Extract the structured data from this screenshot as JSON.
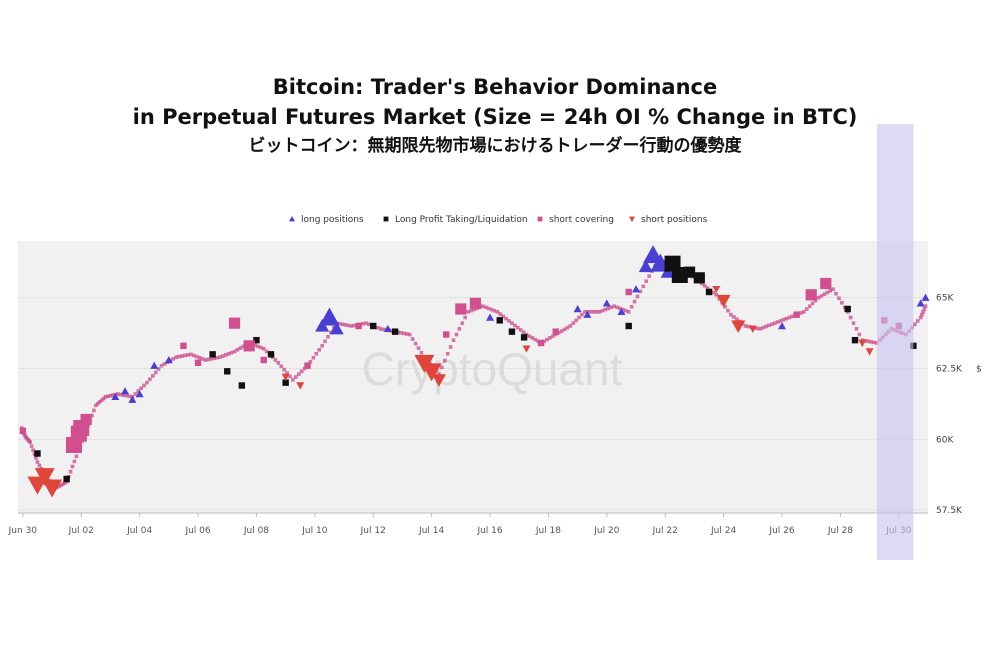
{
  "title": {
    "line1": "Bitcoin: Trader's Behavior Dominance",
    "line2": "in Perpetual Futures Market (Size = 24h OI % Change in BTC)",
    "line3": "ビットコイン：無期限先物市場におけるトレーダー行動の優勢度"
  },
  "watermark": "CryptoQuant",
  "colors": {
    "long": "#4a3fd4",
    "profit_taking": "#111111",
    "short_covering": "#d24f8f",
    "short": "#e0453a",
    "plot_bg": "#f1f1f1",
    "highlight": "#c7c3ee"
  },
  "chart_data": {
    "type": "scatter",
    "title": "Bitcoin: Trader's Behavior Dominance in Perpetual Futures Market (Size = 24h OI % Change in BTC)",
    "x_ticks": [
      "Jun 30",
      "Jul 02",
      "Jul 04",
      "Jul 06",
      "Jul 08",
      "Jul 10",
      "Jul 12",
      "Jul 14",
      "Jul 16",
      "Jul 18",
      "Jul 20",
      "Jul 22",
      "Jul 24",
      "Jul 26",
      "Jul 28",
      "Jul 30"
    ],
    "y_ticks": [
      "57.5K",
      "60K",
      "62.5K",
      "65K"
    ],
    "y_axis_unit": "$",
    "ylim": [
      57400,
      67000
    ],
    "xlim": [
      "2024-06-29T20:00",
      "2024-07-31T00:00"
    ],
    "highlight_range": [
      "2024-07-29T06:00",
      "2024-07-30T12:00"
    ],
    "legend_position": "top",
    "legend": [
      {
        "key": "long",
        "label": "long positions"
      },
      {
        "key": "profit_taking",
        "label": "Long Profit Taking/Liquidation"
      },
      {
        "key": "short_covering",
        "label": "short covering"
      },
      {
        "key": "short",
        "label": "short positions"
      }
    ],
    "series": [
      {
        "key": "long",
        "name": "long positions",
        "marker": "triangle-up",
        "points": [
          [
            "2024-07-03T04:00",
            61500,
            1
          ],
          [
            "2024-07-03T12:00",
            61700,
            1
          ],
          [
            "2024-07-03T18:00",
            61400,
            1
          ],
          [
            "2024-07-04T00:00",
            61600,
            1
          ],
          [
            "2024-07-04T12:00",
            62600,
            1
          ],
          [
            "2024-07-05T00:00",
            62800,
            1
          ],
          [
            "2024-07-10T06:00",
            64000,
            2
          ],
          [
            "2024-07-10T12:00",
            64300,
            3
          ],
          [
            "2024-07-10T18:00",
            63900,
            2
          ],
          [
            "2024-07-12T12:00",
            63900,
            1
          ],
          [
            "2024-07-16T00:00",
            64300,
            1
          ],
          [
            "2024-07-19T00:00",
            64600,
            1
          ],
          [
            "2024-07-19T08:00",
            64400,
            1
          ],
          [
            "2024-07-20T00:00",
            64800,
            1
          ],
          [
            "2024-07-20T12:00",
            64500,
            1
          ],
          [
            "2024-07-21T00:00",
            65300,
            1
          ],
          [
            "2024-07-21T08:00",
            66100,
            2
          ],
          [
            "2024-07-21T14:00",
            66500,
            3
          ],
          [
            "2024-07-21T20:00",
            66200,
            3
          ],
          [
            "2024-07-22T02:00",
            65900,
            2
          ],
          [
            "2024-07-26T00:00",
            64000,
            1
          ],
          [
            "2024-07-30T18:00",
            64800,
            1
          ],
          [
            "2024-07-30T22:00",
            65000,
            1
          ]
        ]
      },
      {
        "key": "profit_taking",
        "name": "Long Profit Taking/Liquidation",
        "marker": "square",
        "points": [
          [
            "2024-06-30T12:00",
            59500,
            1
          ],
          [
            "2024-07-01T12:00",
            58600,
            1
          ],
          [
            "2024-07-06T12:00",
            63000,
            1
          ],
          [
            "2024-07-07T00:00",
            62400,
            1
          ],
          [
            "2024-07-07T12:00",
            61900,
            1
          ],
          [
            "2024-07-08T00:00",
            63500,
            1
          ],
          [
            "2024-07-08T12:00",
            63000,
            1
          ],
          [
            "2024-07-09T00:00",
            62000,
            1
          ],
          [
            "2024-07-12T00:00",
            64000,
            1
          ],
          [
            "2024-07-12T18:00",
            63800,
            1
          ],
          [
            "2024-07-16T08:00",
            64200,
            1
          ],
          [
            "2024-07-16T18:00",
            63800,
            1
          ],
          [
            "2024-07-17T04:00",
            63600,
            1
          ],
          [
            "2024-07-20T18:00",
            64000,
            1
          ],
          [
            "2024-07-22T06:00",
            66200,
            3
          ],
          [
            "2024-07-22T12:00",
            65800,
            3
          ],
          [
            "2024-07-22T20:00",
            65900,
            2
          ],
          [
            "2024-07-23T04:00",
            65700,
            2
          ],
          [
            "2024-07-23T12:00",
            65200,
            1
          ],
          [
            "2024-07-28T06:00",
            64600,
            1
          ],
          [
            "2024-07-28T12:00",
            63500,
            1
          ],
          [
            "2024-07-30T12:00",
            63300,
            1
          ]
        ]
      },
      {
        "key": "short_covering",
        "name": "short covering",
        "marker": "square",
        "points": [
          [
            "2024-06-30T00:00",
            60300,
            1
          ],
          [
            "2024-07-01T18:00",
            59800,
            3
          ],
          [
            "2024-07-01T22:00",
            60200,
            3
          ],
          [
            "2024-07-02T00:00",
            60400,
            3
          ],
          [
            "2024-07-02T04:00",
            60700,
            2
          ],
          [
            "2024-07-05T12:00",
            63300,
            1
          ],
          [
            "2024-07-06T00:00",
            62700,
            1
          ],
          [
            "2024-07-07T06:00",
            64100,
            2
          ],
          [
            "2024-07-07T18:00",
            63300,
            2
          ],
          [
            "2024-07-08T06:00",
            62800,
            1
          ],
          [
            "2024-07-09T18:00",
            62600,
            1
          ],
          [
            "2024-07-11T12:00",
            64000,
            1
          ],
          [
            "2024-07-14T12:00",
            63700,
            1
          ],
          [
            "2024-07-15T00:00",
            64600,
            2
          ],
          [
            "2024-07-15T12:00",
            64800,
            2
          ],
          [
            "2024-07-17T18:00",
            63400,
            1
          ],
          [
            "2024-07-18T06:00",
            63800,
            1
          ],
          [
            "2024-07-20T18:00",
            65200,
            1
          ],
          [
            "2024-07-26T12:00",
            64400,
            1
          ],
          [
            "2024-07-27T00:00",
            65100,
            2
          ],
          [
            "2024-07-27T12:00",
            65500,
            2
          ],
          [
            "2024-07-29T12:00",
            64200,
            1
          ],
          [
            "2024-07-30T00:00",
            64000,
            1
          ]
        ]
      },
      {
        "key": "short",
        "name": "short positions",
        "marker": "triangle-down",
        "points": [
          [
            "2024-06-30T12:00",
            58400,
            3
          ],
          [
            "2024-06-30T18:00",
            58700,
            3
          ],
          [
            "2024-07-01T00:00",
            58300,
            3
          ],
          [
            "2024-07-09T00:00",
            62200,
            1
          ],
          [
            "2024-07-09T12:00",
            61900,
            1
          ],
          [
            "2024-07-13T18:00",
            62700,
            3
          ],
          [
            "2024-07-14T00:00",
            62400,
            3
          ],
          [
            "2024-07-14T06:00",
            62100,
            2
          ],
          [
            "2024-07-17T06:00",
            63200,
            1
          ],
          [
            "2024-07-23T18:00",
            65300,
            1
          ],
          [
            "2024-07-24T00:00",
            64900,
            2
          ],
          [
            "2024-07-24T12:00",
            64000,
            2
          ],
          [
            "2024-07-25T00:00",
            63900,
            1
          ],
          [
            "2024-07-28T18:00",
            63400,
            1
          ],
          [
            "2024-07-29T00:00",
            63100,
            1
          ]
        ]
      }
    ],
    "price_path": [
      [
        "2024-06-29T23:00",
        60400
      ],
      [
        "2024-06-30T02:00",
        60100
      ],
      [
        "2024-06-30T06:00",
        59900
      ],
      [
        "2024-06-30T12:00",
        59200
      ],
      [
        "2024-06-30T20:00",
        58600
      ],
      [
        "2024-07-01T04:00",
        58300
      ],
      [
        "2024-07-01T12:00",
        58500
      ],
      [
        "2024-07-01T20:00",
        59400
      ],
      [
        "2024-07-02T04:00",
        60300
      ],
      [
        "2024-07-02T12:00",
        61200
      ],
      [
        "2024-07-02T20:00",
        61500
      ],
      [
        "2024-07-03T06:00",
        61600
      ],
      [
        "2024-07-03T18:00",
        61500
      ],
      [
        "2024-07-04T06:00",
        62000
      ],
      [
        "2024-07-04T18:00",
        62600
      ],
      [
        "2024-07-05T06:00",
        62900
      ],
      [
        "2024-07-05T18:00",
        63000
      ],
      [
        "2024-07-06T06:00",
        62800
      ],
      [
        "2024-07-06T18:00",
        62900
      ],
      [
        "2024-07-07T06:00",
        63100
      ],
      [
        "2024-07-07T18:00",
        63400
      ],
      [
        "2024-07-08T06:00",
        63200
      ],
      [
        "2024-07-08T18:00",
        62700
      ],
      [
        "2024-07-09T06:00",
        62100
      ],
      [
        "2024-07-09T18:00",
        62600
      ],
      [
        "2024-07-10T06:00",
        63300
      ],
      [
        "2024-07-10T18:00",
        64100
      ],
      [
        "2024-07-11T06:00",
        64000
      ],
      [
        "2024-07-11T18:00",
        64100
      ],
      [
        "2024-07-12T06:00",
        63900
      ],
      [
        "2024-07-12T18:00",
        63800
      ],
      [
        "2024-07-13T06:00",
        63700
      ],
      [
        "2024-07-13T18:00",
        62900
      ],
      [
        "2024-07-14T06:00",
        62300
      ],
      [
        "2024-07-14T18:00",
        63500
      ],
      [
        "2024-07-15T06:00",
        64500
      ],
      [
        "2024-07-15T18:00",
        64700
      ],
      [
        "2024-07-16T06:00",
        64500
      ],
      [
        "2024-07-16T18:00",
        64100
      ],
      [
        "2024-07-17T06:00",
        63700
      ],
      [
        "2024-07-17T18:00",
        63400
      ],
      [
        "2024-07-18T06:00",
        63700
      ],
      [
        "2024-07-18T18:00",
        64000
      ],
      [
        "2024-07-19T06:00",
        64500
      ],
      [
        "2024-07-19T18:00",
        64500
      ],
      [
        "2024-07-20T06:00",
        64700
      ],
      [
        "2024-07-20T18:00",
        64500
      ],
      [
        "2024-07-21T06:00",
        65400
      ],
      [
        "2024-07-21T18:00",
        66300
      ],
      [
        "2024-07-22T06:00",
        66200
      ],
      [
        "2024-07-22T18:00",
        65900
      ],
      [
        "2024-07-23T06:00",
        65500
      ],
      [
        "2024-07-23T18:00",
        65100
      ],
      [
        "2024-07-24T06:00",
        64400
      ],
      [
        "2024-07-24T18:00",
        64000
      ],
      [
        "2024-07-25T06:00",
        63900
      ],
      [
        "2024-07-25T18:00",
        64100
      ],
      [
        "2024-07-26T06:00",
        64300
      ],
      [
        "2024-07-26T18:00",
        64500
      ],
      [
        "2024-07-27T06:00",
        65000
      ],
      [
        "2024-07-27T18:00",
        65300
      ],
      [
        "2024-07-28T06:00",
        64500
      ],
      [
        "2024-07-28T18:00",
        63500
      ],
      [
        "2024-07-29T06:00",
        63400
      ],
      [
        "2024-07-29T18:00",
        63900
      ],
      [
        "2024-07-30T06:00",
        63700
      ],
      [
        "2024-07-30T18:00",
        64300
      ],
      [
        "2024-07-30T23:00",
        64800
      ]
    ]
  }
}
